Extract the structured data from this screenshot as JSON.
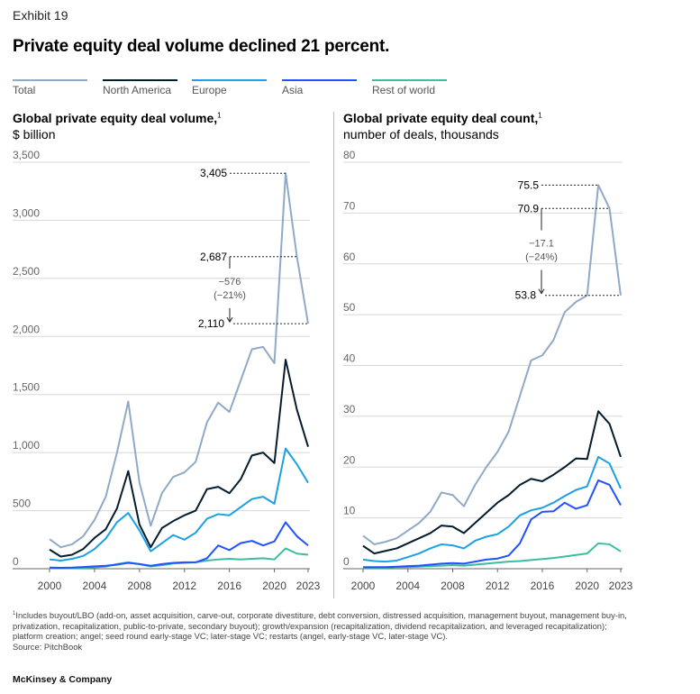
{
  "exhibit": "Exhibit 19",
  "title": "Private equity deal volume declined 21 percent.",
  "legend": [
    {
      "label": "Total",
      "color": "#8fa9c6"
    },
    {
      "label": "North America",
      "color": "#051c2c"
    },
    {
      "label": "Europe",
      "color": "#1ba1e2"
    },
    {
      "label": "Asia",
      "color": "#2251ff"
    },
    {
      "label": "Rest of world",
      "color": "#3cbca0"
    }
  ],
  "chart_data": [
    {
      "type": "line",
      "title": "Global private equity deal volume,",
      "title_note": "1",
      "subtitle": "$ billion",
      "x": [
        2000,
        2001,
        2002,
        2003,
        2004,
        2005,
        2006,
        2007,
        2008,
        2009,
        2010,
        2011,
        2012,
        2013,
        2014,
        2015,
        2016,
        2017,
        2018,
        2019,
        2020,
        2021,
        2022,
        2023
      ],
      "x_ticks": [
        "2000",
        "2004",
        "2008",
        "2012",
        "2016",
        "2020",
        "2023"
      ],
      "y_ticks": [
        "0",
        "500",
        "1,000",
        "1,500",
        "2,000",
        "2,500",
        "3,000",
        "3,500"
      ],
      "ylim": [
        0,
        3500
      ],
      "series": [
        {
          "name": "Total",
          "color": "#8fa9c6",
          "values": [
            255,
            185,
            210,
            280,
            420,
            620,
            1000,
            1440,
            740,
            370,
            650,
            790,
            830,
            920,
            1260,
            1430,
            1350,
            1620,
            1890,
            1910,
            1770,
            3405,
            2687,
            2110
          ]
        },
        {
          "name": "North America",
          "color": "#051c2c",
          "values": [
            165,
            105,
            120,
            170,
            265,
            340,
            520,
            840,
            380,
            185,
            350,
            410,
            460,
            500,
            685,
            705,
            650,
            770,
            975,
            1000,
            910,
            1800,
            1370,
            1050
          ]
        },
        {
          "name": "Europe",
          "color": "#1ba1e2",
          "values": [
            80,
            70,
            85,
            110,
            170,
            260,
            400,
            480,
            330,
            150,
            220,
            290,
            250,
            310,
            430,
            470,
            460,
            530,
            600,
            620,
            560,
            1035,
            900,
            740
          ]
        },
        {
          "name": "Asia",
          "color": "#2251ff",
          "values": [
            10,
            8,
            10,
            15,
            20,
            25,
            35,
            50,
            40,
            25,
            40,
            50,
            55,
            55,
            90,
            200,
            160,
            220,
            240,
            200,
            235,
            400,
            280,
            200
          ]
        },
        {
          "name": "Rest of world",
          "color": "#3cbca0",
          "values": [
            5,
            5,
            5,
            8,
            12,
            18,
            40,
            55,
            40,
            20,
            30,
            45,
            50,
            55,
            70,
            80,
            85,
            80,
            85,
            90,
            80,
            175,
            130,
            120
          ]
        }
      ],
      "annotations": {
        "peak": "3,405",
        "prev": "2,687",
        "last": "2,110",
        "change": "−576",
        "pct": "(−21%)"
      }
    },
    {
      "type": "line",
      "title": "Global private equity deal count,",
      "title_note": "1",
      "subtitle": "number of deals, thousands",
      "x": [
        2000,
        2001,
        2002,
        2003,
        2004,
        2005,
        2006,
        2007,
        2008,
        2009,
        2010,
        2011,
        2012,
        2013,
        2014,
        2015,
        2016,
        2017,
        2018,
        2019,
        2020,
        2021,
        2022,
        2023
      ],
      "x_ticks": [
        "2000",
        "2004",
        "2008",
        "2012",
        "2016",
        "2020",
        "2023"
      ],
      "y_ticks": [
        "0",
        "10",
        "20",
        "30",
        "40",
        "50",
        "60",
        "70",
        "80"
      ],
      "ylim": [
        0,
        80
      ],
      "series": [
        {
          "name": "Total",
          "color": "#8fa9c6",
          "values": [
            6.5,
            4.8,
            5.3,
            6,
            7.5,
            9,
            11.2,
            15,
            14.5,
            12.3,
            16.5,
            20,
            23,
            27,
            34,
            41,
            42,
            45,
            50.5,
            52.5,
            53.8,
            75.5,
            70.9,
            53.8
          ]
        },
        {
          "name": "North America",
          "color": "#051c2c",
          "values": [
            4.5,
            3,
            3.5,
            4,
            5,
            6,
            7,
            8.5,
            8.3,
            7,
            9,
            11,
            13,
            14.5,
            16.5,
            17.7,
            17.2,
            18.5,
            20,
            21.7,
            21.6,
            31,
            28.5,
            22
          ]
        },
        {
          "name": "Europe",
          "color": "#1ba1e2",
          "values": [
            1.8,
            1.5,
            1.4,
            1.6,
            2.3,
            3,
            4,
            4.8,
            4.6,
            4,
            5.5,
            6.3,
            6.8,
            8.3,
            10.5,
            11.5,
            12,
            13,
            14.3,
            15.5,
            16.2,
            22,
            20.7,
            15.8
          ]
        },
        {
          "name": "Asia",
          "color": "#2251ff",
          "values": [
            0.3,
            0.3,
            0.3,
            0.4,
            0.5,
            0.6,
            0.8,
            1,
            1.1,
            1,
            1.4,
            1.8,
            2,
            2.6,
            5,
            9.7,
            11.2,
            11.3,
            13,
            11.8,
            12.5,
            17.4,
            16.5,
            12.5
          ]
        },
        {
          "name": "Rest of world",
          "color": "#3cbca0",
          "values": [
            0.2,
            0.2,
            0.2,
            0.3,
            0.3,
            0.4,
            0.5,
            0.6,
            0.7,
            0.6,
            0.8,
            1,
            1.2,
            1.4,
            1.5,
            1.7,
            1.9,
            2.1,
            2.4,
            2.7,
            3,
            5,
            4.8,
            3.4
          ]
        }
      ],
      "annotations": {
        "peak": "75.5",
        "prev": "70.9",
        "last": "53.8",
        "change": "−17.1",
        "pct": "(−24%)"
      }
    }
  ],
  "footnote": "Includes buyout/LBO (add-on, asset acquisition, carve-out, corporate divestiture, debt conversion, distressed acquisition, management buyout, management buy-in, privatization, recapitalization, public-to-private, secondary buyout); growth/expansion (recapitalization, dividend recapitalization, and leveraged recapitalization); platform creation; angel; seed round early-stage VC; later-stage VC; restarts (angel, early-stage VC, later-stage VC).",
  "footnote_marker": "1",
  "source": "Source: PitchBook",
  "brand": "McKinsey & Company"
}
